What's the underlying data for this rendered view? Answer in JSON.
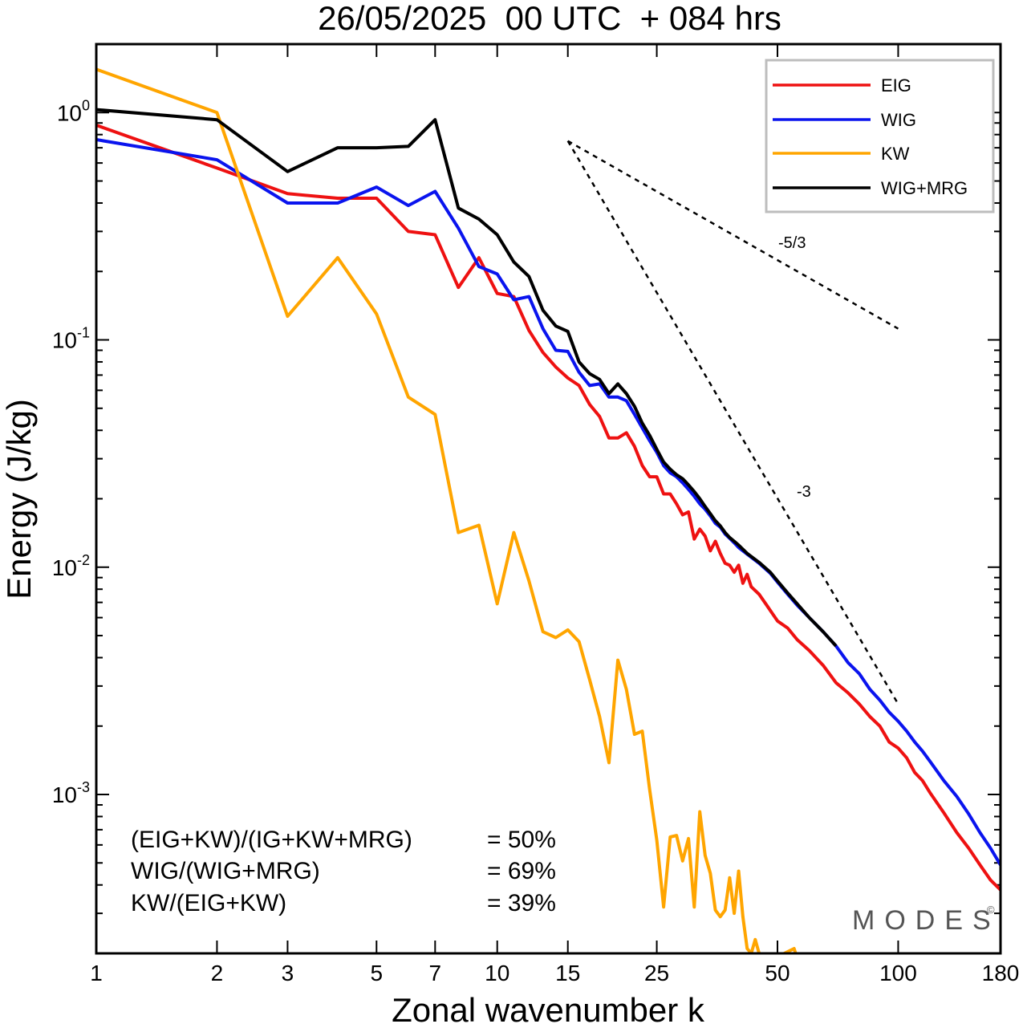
{
  "colors": {
    "EIG": "#ee1111",
    "WIG": "#0a14ee",
    "KW": "#ffa500",
    "WIG+MRG": "#000000"
  },
  "chart_data": {
    "type": "line",
    "title": "26/05/2025  00 UTC  + 084 hrs",
    "xlabel": "Zonal wavenumber k",
    "ylabel": "Energy (J/kg)",
    "xscale": "log",
    "yscale": "log",
    "xlim": [
      1,
      180
    ],
    "ylim": [
      0.0002,
      2.0
    ],
    "xticks": [
      1,
      2,
      3,
      5,
      7,
      10,
      15,
      25,
      50,
      100,
      180
    ],
    "xtick_labels": [
      "1",
      "2",
      "3",
      "5",
      "7",
      "10",
      "15",
      "25",
      "50",
      "100",
      "180"
    ],
    "yticks": [
      {
        "value": 1,
        "base": "10",
        "exp": "0"
      },
      {
        "value": 0.1,
        "base": "10",
        "exp": "-1"
      },
      {
        "value": 0.01,
        "base": "10",
        "exp": "-2"
      },
      {
        "value": 0.001,
        "base": "10",
        "exp": "-3"
      }
    ],
    "legend_position": "top-right",
    "grid": false,
    "series": [
      {
        "name": "EIG",
        "points": [
          [
            1,
            0.88
          ],
          [
            2,
            0.57
          ],
          [
            3,
            0.44
          ],
          [
            4,
            0.42
          ],
          [
            5,
            0.42
          ],
          [
            6,
            0.3
          ],
          [
            7,
            0.29
          ],
          [
            8,
            0.17
          ],
          [
            9,
            0.23
          ],
          [
            10,
            0.16
          ],
          [
            11,
            0.155
          ],
          [
            12,
            0.11
          ],
          [
            13,
            0.088
          ],
          [
            14,
            0.076
          ],
          [
            15,
            0.068
          ],
          [
            16,
            0.063
          ],
          [
            17,
            0.052
          ],
          [
            18,
            0.046
          ],
          [
            19,
            0.037
          ],
          [
            20,
            0.037
          ],
          [
            21,
            0.039
          ],
          [
            22,
            0.034
          ],
          [
            23,
            0.028
          ],
          [
            24,
            0.025
          ],
          [
            25,
            0.025
          ],
          [
            26,
            0.021
          ],
          [
            27,
            0.021
          ],
          [
            28,
            0.019
          ],
          [
            29,
            0.017
          ],
          [
            30,
            0.0175
          ],
          [
            31,
            0.0133
          ],
          [
            32,
            0.0147
          ],
          [
            33,
            0.0137
          ],
          [
            34,
            0.0118
          ],
          [
            35,
            0.013
          ],
          [
            36,
            0.0115
          ],
          [
            37,
            0.0104
          ],
          [
            38,
            0.0102
          ],
          [
            39,
            0.0095
          ],
          [
            40,
            0.0102
          ],
          [
            41,
            0.0085
          ],
          [
            42,
            0.0093
          ],
          [
            43,
            0.0082
          ],
          [
            45,
            0.0076
          ],
          [
            47,
            0.0068
          ],
          [
            50,
            0.0058
          ],
          [
            53,
            0.0054
          ],
          [
            56,
            0.0048
          ],
          [
            60,
            0.0043
          ],
          [
            65,
            0.0037
          ],
          [
            70,
            0.0031
          ],
          [
            75,
            0.0028
          ],
          [
            80,
            0.0025
          ],
          [
            85,
            0.0022
          ],
          [
            90,
            0.002
          ],
          [
            95,
            0.0017
          ],
          [
            100,
            0.0016
          ],
          [
            105,
            0.00145
          ],
          [
            110,
            0.00125
          ],
          [
            115,
            0.00115
          ],
          [
            120,
            0.00102
          ],
          [
            130,
            0.00083
          ],
          [
            140,
            0.00068
          ],
          [
            150,
            0.00058
          ],
          [
            160,
            0.00049
          ],
          [
            170,
            0.00042
          ],
          [
            180,
            0.00038
          ]
        ]
      },
      {
        "name": "WIG",
        "points": [
          [
            1,
            0.76
          ],
          [
            2,
            0.62
          ],
          [
            3,
            0.4
          ],
          [
            4,
            0.4
          ],
          [
            5,
            0.47
          ],
          [
            6,
            0.39
          ],
          [
            7,
            0.45
          ],
          [
            8,
            0.31
          ],
          [
            9,
            0.21
          ],
          [
            10,
            0.195
          ],
          [
            11,
            0.15
          ],
          [
            12,
            0.155
          ],
          [
            13,
            0.112
          ],
          [
            14,
            0.09
          ],
          [
            15,
            0.089
          ],
          [
            16,
            0.072
          ],
          [
            17,
            0.063
          ],
          [
            18,
            0.064
          ],
          [
            19,
            0.056
          ],
          [
            20,
            0.056
          ],
          [
            21,
            0.054
          ],
          [
            22,
            0.047
          ],
          [
            23,
            0.041
          ],
          [
            24,
            0.036
          ],
          [
            25,
            0.032
          ],
          [
            26,
            0.028
          ],
          [
            27,
            0.026
          ],
          [
            28,
            0.025
          ],
          [
            29,
            0.0235
          ],
          [
            30,
            0.022
          ],
          [
            31,
            0.0205
          ],
          [
            32,
            0.019
          ],
          [
            33,
            0.018
          ],
          [
            34,
            0.0168
          ],
          [
            35,
            0.0156
          ],
          [
            36,
            0.015
          ],
          [
            37,
            0.014
          ],
          [
            38,
            0.0134
          ],
          [
            39,
            0.0128
          ],
          [
            40,
            0.0122
          ],
          [
            42,
            0.0114
          ],
          [
            45,
            0.0104
          ],
          [
            48,
            0.0094
          ],
          [
            50,
            0.0086
          ],
          [
            53,
            0.0076
          ],
          [
            56,
            0.0068
          ],
          [
            60,
            0.006
          ],
          [
            65,
            0.0052
          ],
          [
            70,
            0.0045
          ],
          [
            75,
            0.0038
          ],
          [
            80,
            0.0034
          ],
          [
            85,
            0.0029
          ],
          [
            90,
            0.0026
          ],
          [
            95,
            0.0023
          ],
          [
            100,
            0.0021
          ],
          [
            105,
            0.0019
          ],
          [
            110,
            0.0017
          ],
          [
            115,
            0.00155
          ],
          [
            120,
            0.0014
          ],
          [
            130,
            0.00115
          ],
          [
            140,
            0.00098
          ],
          [
            150,
            0.00082
          ],
          [
            160,
            0.00068
          ],
          [
            170,
            0.00058
          ],
          [
            180,
            0.00049
          ]
        ]
      },
      {
        "name": "KW",
        "points": [
          [
            1,
            1.55
          ],
          [
            2,
            1.0
          ],
          [
            3,
            0.127
          ],
          [
            4,
            0.23
          ],
          [
            5,
            0.13
          ],
          [
            6,
            0.056
          ],
          [
            7,
            0.047
          ],
          [
            8,
            0.0142
          ],
          [
            9,
            0.0153
          ],
          [
            10,
            0.0069
          ],
          [
            11,
            0.0142
          ],
          [
            12,
            0.0087
          ],
          [
            13,
            0.0052
          ],
          [
            14,
            0.0049
          ],
          [
            15,
            0.0053
          ],
          [
            16,
            0.0047
          ],
          [
            17,
            0.0032
          ],
          [
            18,
            0.0022
          ],
          [
            19,
            0.00138
          ],
          [
            20,
            0.0039
          ],
          [
            21,
            0.0029
          ],
          [
            22,
            0.00184
          ],
          [
            23,
            0.0019
          ],
          [
            24,
            0.00105
          ],
          [
            25,
            0.00063
          ],
          [
            26,
            0.00032
          ],
          [
            27,
            0.00065
          ],
          [
            28,
            0.00066
          ],
          [
            29,
            0.00051
          ],
          [
            30,
            0.00064
          ],
          [
            31,
            0.00032
          ],
          [
            32,
            0.00084
          ],
          [
            33,
            0.00054
          ],
          [
            34,
            0.00045
          ],
          [
            35,
            0.00031
          ],
          [
            36,
            0.00029
          ],
          [
            37,
            0.00031
          ],
          [
            38,
            0.00043
          ],
          [
            39,
            0.0003
          ],
          [
            40,
            0.00046
          ],
          [
            41,
            0.00029
          ],
          [
            42,
            0.00021
          ],
          [
            43,
            0.0002
          ],
          [
            44,
            0.00023
          ],
          [
            45,
            0.0002
          ],
          [
            50,
            0.00019
          ],
          [
            52,
            0.0002
          ],
          [
            55,
            0.00021
          ],
          [
            56,
            0.00019
          ]
        ]
      },
      {
        "name": "WIG+MRG",
        "points": [
          [
            1,
            1.03
          ],
          [
            2,
            0.93
          ],
          [
            3,
            0.55
          ],
          [
            4,
            0.7
          ],
          [
            5,
            0.7
          ],
          [
            6,
            0.71
          ],
          [
            7,
            0.93
          ],
          [
            8,
            0.38
          ],
          [
            9,
            0.34
          ],
          [
            10,
            0.29
          ],
          [
            11,
            0.22
          ],
          [
            12,
            0.19
          ],
          [
            13,
            0.135
          ],
          [
            14,
            0.115
          ],
          [
            15,
            0.109
          ],
          [
            16,
            0.08
          ],
          [
            17,
            0.071
          ],
          [
            18,
            0.067
          ],
          [
            19,
            0.058
          ],
          [
            20,
            0.064
          ],
          [
            21,
            0.058
          ],
          [
            22,
            0.051
          ],
          [
            23,
            0.043
          ],
          [
            24,
            0.038
          ],
          [
            25,
            0.033
          ],
          [
            26,
            0.029
          ],
          [
            27,
            0.027
          ],
          [
            28,
            0.0255
          ],
          [
            29,
            0.0245
          ],
          [
            30,
            0.023
          ],
          [
            31,
            0.0215
          ],
          [
            32,
            0.02
          ],
          [
            33,
            0.0185
          ],
          [
            34,
            0.0172
          ],
          [
            35,
            0.016
          ],
          [
            36,
            0.0152
          ],
          [
            37,
            0.0142
          ],
          [
            38,
            0.0135
          ],
          [
            39,
            0.013
          ],
          [
            40,
            0.0125
          ],
          [
            42,
            0.0115
          ],
          [
            45,
            0.0105
          ],
          [
            48,
            0.0095
          ],
          [
            50,
            0.0087
          ],
          [
            53,
            0.0077
          ],
          [
            56,
            0.0069
          ],
          [
            60,
            0.006
          ],
          [
            65,
            0.0052
          ],
          [
            70,
            0.0045
          ]
        ]
      }
    ],
    "reference_lines": [
      {
        "label": "-5/3",
        "points": [
          [
            15,
            0.75
          ],
          [
            100,
            0.112
          ]
        ]
      },
      {
        "label": "-3",
        "points": [
          [
            15,
            0.75
          ],
          [
            100,
            0.0025
          ]
        ]
      }
    ],
    "annotations": [
      {
        "label": "(EIG+KW)/(IG+KW+MRG)",
        "value": "= 50%"
      },
      {
        "label": "WIG/(WIG+MRG)",
        "value": "= 69%"
      },
      {
        "label": "KW/(EIG+KW)",
        "value": "= 39%"
      }
    ],
    "watermark": "MODES",
    "watermark_mark": "©"
  }
}
